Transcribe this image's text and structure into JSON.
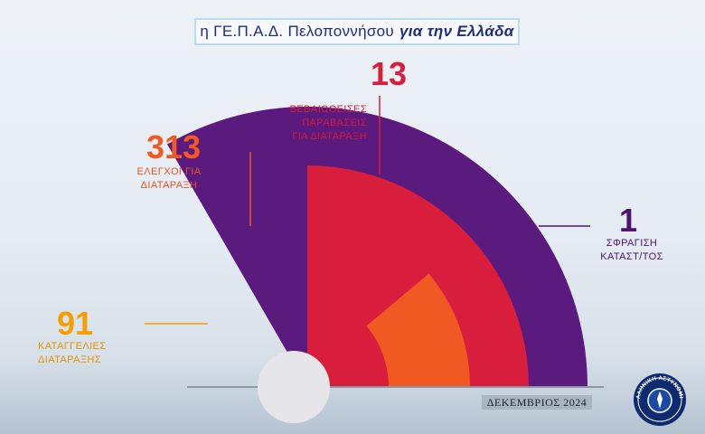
{
  "header": {
    "title_plain": "η ΓΕ.Π.Α.Δ. Πελοποννήσου",
    "title_bold": "για την Ελλάδα"
  },
  "chart_data": {
    "type": "radial-bar",
    "categories": [
      "ΚΑΤΑΓΓΕΛΙΕΣ ΔΙΑΤΑΡΑΞΗΣ",
      "ΕΛΕΓΧΟΙ ΓΙΑ ΔΙΑΤΑΡΑΞΗ",
      "ΒΕΒΑΙΩΘΕΙΣΕΣ ΠΑΡΑΒΑΣΕΙΣ ΓΙΑ ΔΙΑΤΑΡΑΞΗ",
      "ΣΦΡΑΓΙΣΗ ΚΑΤΑΣΤ/ΤΟΣ"
    ],
    "values": [
      91,
      313,
      13,
      1
    ],
    "colors": [
      "#f5b800",
      "#f05a22",
      "#d81e3c",
      "#5b1a7e"
    ],
    "items": [
      {
        "value_text": "91",
        "label_lines": [
          "ΚΑΤΑΓΓΕΛΙΕΣ",
          "ΔΙΑΤΑΡΑΞΗΣ"
        ],
        "color": "#f5a000"
      },
      {
        "value_text": "313",
        "label_lines": [
          "ΕΛΕΓΧΟΙ ΓΙΑ",
          "ΔΙΑΤΑΡΑΞΗ"
        ],
        "color": "#f05a22"
      },
      {
        "value_text": "13",
        "label_lines": [
          "ΒΕΒΑΙΩΘΕΙΣΕΣ",
          "ΠΑΡΑΒΑΣΕΙΣ",
          "ΓΙΑ ΔΙΑΤΑΡΑΞΗ"
        ],
        "color": "#d81e3c"
      },
      {
        "value_text": "1",
        "label_lines": [
          "ΣΦΡΑΓΙΣΗ",
          "ΚΑΤΑΣΤ/ΤΟΣ"
        ],
        "color": "#4b1470"
      }
    ]
  },
  "footer": {
    "date": "ΔΕΚΕΜΒΡΙΟΣ 2024",
    "logo_icon": "hellenic-police-emblem-icon",
    "logo_text": "ΕΛΛΗΝΙΚΗ ΑΣΤΥΝΟΜΙΑ"
  }
}
